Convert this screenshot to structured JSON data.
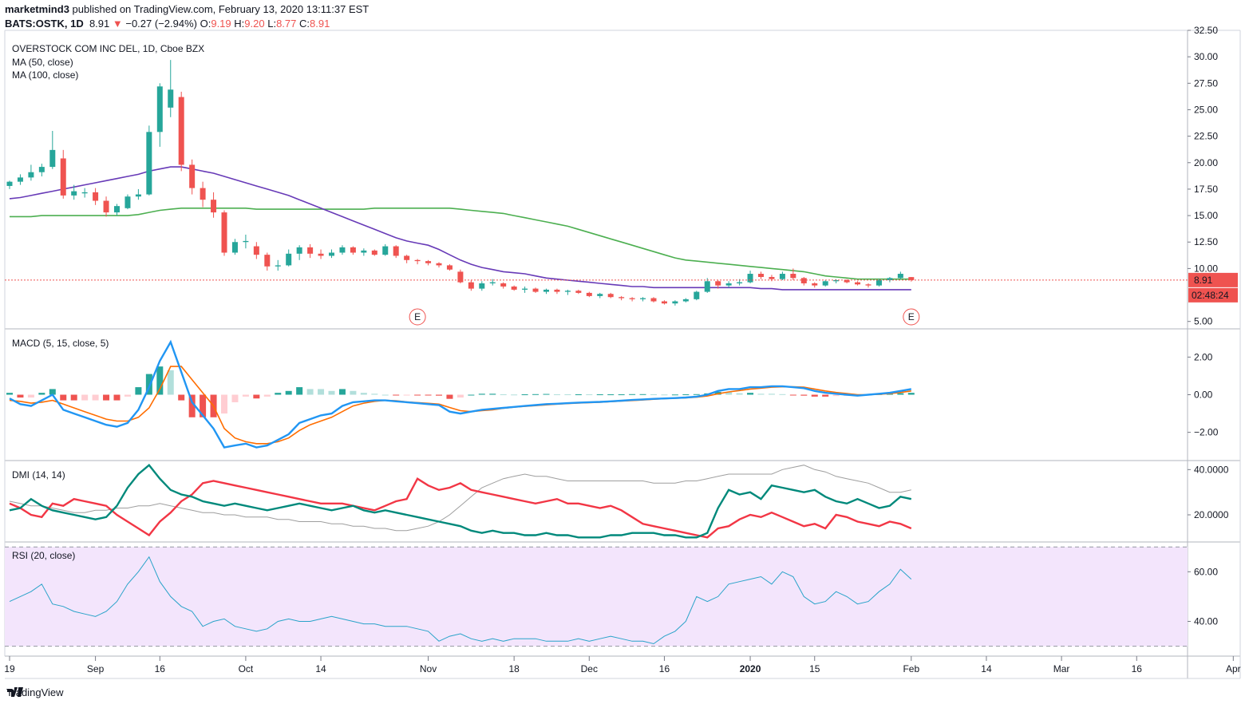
{
  "header": {
    "author": "marketmind3",
    "published_text": "published on TradingView.com, February 13, 2020 13:11:37 EST",
    "symbol": "BATS:OSTK, 1D",
    "last": "8.91",
    "change": "−0.27 (−2.94%)",
    "o_label": "O:",
    "o": "9.19",
    "h_label": "H:",
    "h": "9.20",
    "l_label": "L:",
    "l": "8.77",
    "c_label": "C:",
    "c": "8.91"
  },
  "footer": {
    "brand": "TradingView"
  },
  "colors": {
    "up": "#26a69a",
    "down": "#ef5350",
    "ma50": "#673ab7",
    "ma100": "#4caf50",
    "macd": "#2196f3",
    "signal": "#ff6d00",
    "diplus": "#00897b",
    "diminus": "#f23645",
    "adx": "#9e9e9e",
    "rsi": "#29a3c9",
    "rsi_band": "#f3e5fc"
  },
  "chart_data": [
    {
      "type": "candlestick",
      "title": "OVERSTOCK COM INC DEL, 1D, Cboe BZX",
      "legend": [
        "MA (50, close)",
        "MA (100, close)"
      ],
      "ylim": [
        4.3,
        32.5
      ],
      "y_ticks": [
        "32.50",
        "30.00",
        "27.50",
        "25.00",
        "22.50",
        "20.00",
        "17.50",
        "15.00",
        "12.50",
        "10.00",
        "5.00"
      ],
      "last_price_label": "8.91",
      "countdown_label": "02:48:24",
      "earnings_markers": [
        "E",
        "E"
      ],
      "earnings_x": [
        38,
        84
      ],
      "x_ticks": [
        {
          "label": "19",
          "x": 0
        },
        {
          "label": "Sep",
          "x": 8
        },
        {
          "label": "16",
          "x": 14
        },
        {
          "label": "Oct",
          "x": 22
        },
        {
          "label": "14",
          "x": 29
        },
        {
          "label": "Nov",
          "x": 39
        },
        {
          "label": "18",
          "x": 47
        },
        {
          "label": "Dec",
          "x": 54
        },
        {
          "label": "16",
          "x": 61
        },
        {
          "label": "2020",
          "x": 69
        },
        {
          "label": "15",
          "x": 75
        },
        {
          "label": "Feb",
          "x": 84
        },
        {
          "label": "14",
          "x": 91
        },
        {
          "label": "Mar",
          "x": 98
        },
        {
          "label": "16",
          "x": 105
        },
        {
          "label": "Apr",
          "x": 114
        }
      ],
      "candles": [
        [
          17.8,
          18.3,
          17.5,
          18.2
        ],
        [
          18.2,
          18.9,
          17.9,
          18.6
        ],
        [
          18.6,
          19.8,
          18.3,
          19.1
        ],
        [
          19.1,
          19.9,
          18.7,
          19.6
        ],
        [
          19.6,
          23.0,
          19.4,
          21.2
        ],
        [
          20.4,
          21.2,
          16.6,
          16.9
        ],
        [
          16.9,
          17.9,
          16.5,
          17.3
        ],
        [
          17.1,
          17.6,
          16.7,
          17.2
        ],
        [
          17.2,
          17.6,
          16.0,
          16.4
        ],
        [
          16.4,
          16.8,
          14.9,
          15.3
        ],
        [
          15.3,
          16.1,
          15.0,
          15.9
        ],
        [
          15.7,
          17.0,
          15.6,
          16.8
        ],
        [
          16.8,
          17.5,
          16.5,
          17.0
        ],
        [
          17.0,
          23.5,
          16.9,
          22.9
        ],
        [
          22.9,
          27.5,
          21.5,
          27.2
        ],
        [
          25.2,
          29.7,
          24.3,
          26.9
        ],
        [
          26.2,
          26.7,
          19.2,
          19.8
        ],
        [
          19.8,
          20.3,
          17.0,
          17.6
        ],
        [
          17.6,
          18.2,
          15.8,
          16.5
        ],
        [
          16.5,
          17.2,
          14.8,
          15.3
        ],
        [
          15.3,
          15.5,
          11.2,
          11.5
        ],
        [
          11.5,
          12.8,
          11.3,
          12.5
        ],
        [
          12.5,
          13.2,
          11.9,
          12.6
        ],
        [
          12.1,
          12.5,
          10.9,
          11.3
        ],
        [
          11.3,
          11.5,
          9.8,
          10.2
        ],
        [
          10.2,
          10.8,
          9.8,
          10.3
        ],
        [
          10.3,
          11.8,
          10.2,
          11.4
        ],
        [
          11.4,
          12.2,
          10.8,
          12.0
        ],
        [
          12.0,
          12.3,
          11.0,
          11.4
        ],
        [
          11.4,
          11.8,
          10.9,
          11.2
        ],
        [
          11.2,
          11.8,
          11.0,
          11.5
        ],
        [
          11.5,
          12.2,
          11.3,
          12.0
        ],
        [
          12.0,
          12.1,
          11.3,
          11.5
        ],
        [
          11.5,
          11.9,
          11.2,
          11.7
        ],
        [
          11.7,
          11.8,
          11.2,
          11.3
        ],
        [
          11.3,
          12.3,
          11.2,
          12.1
        ],
        [
          12.1,
          12.2,
          11.0,
          11.2
        ],
        [
          11.2,
          11.3,
          10.5,
          10.8
        ],
        [
          10.8,
          10.9,
          10.4,
          10.7
        ],
        [
          10.7,
          10.8,
          10.3,
          10.5
        ],
        [
          10.5,
          10.6,
          10.1,
          10.3
        ],
        [
          10.3,
          10.4,
          9.8,
          9.9
        ],
        [
          9.7,
          9.9,
          8.6,
          8.7
        ],
        [
          8.7,
          8.9,
          7.9,
          8.1
        ],
        [
          8.1,
          8.8,
          7.9,
          8.6
        ],
        [
          8.6,
          9.0,
          8.4,
          8.7
        ],
        [
          8.6,
          8.7,
          8.1,
          8.3
        ],
        [
          8.3,
          8.4,
          7.9,
          8.0
        ],
        [
          8.0,
          8.3,
          7.7,
          8.1
        ],
        [
          8.1,
          8.2,
          7.7,
          7.8
        ],
        [
          7.8,
          8.1,
          7.6,
          8.0
        ],
        [
          8.0,
          8.1,
          7.6,
          7.8
        ],
        [
          7.8,
          8.0,
          7.5,
          7.9
        ],
        [
          7.9,
          8.0,
          7.6,
          7.7
        ],
        [
          7.7,
          7.8,
          7.3,
          7.4
        ],
        [
          7.4,
          7.7,
          7.2,
          7.6
        ],
        [
          7.6,
          7.7,
          7.2,
          7.3
        ],
        [
          7.3,
          7.4,
          7.0,
          7.2
        ],
        [
          7.2,
          7.3,
          6.9,
          7.1
        ],
        [
          7.1,
          7.3,
          6.9,
          7.2
        ],
        [
          7.2,
          7.3,
          6.8,
          6.9
        ],
        [
          6.9,
          7.0,
          6.6,
          6.7
        ],
        [
          6.7,
          7.0,
          6.5,
          6.9
        ],
        [
          6.9,
          7.2,
          6.8,
          7.1
        ],
        [
          7.1,
          7.9,
          7.0,
          7.8
        ],
        [
          7.8,
          9.1,
          7.7,
          8.8
        ],
        [
          8.8,
          8.9,
          8.1,
          8.4
        ],
        [
          8.4,
          8.8,
          8.2,
          8.6
        ],
        [
          8.6,
          9.0,
          8.4,
          8.7
        ],
        [
          8.7,
          9.8,
          8.6,
          9.5
        ],
        [
          9.5,
          9.7,
          9.0,
          9.2
        ],
        [
          9.2,
          9.4,
          8.8,
          9.0
        ],
        [
          9.0,
          9.7,
          8.9,
          9.5
        ],
        [
          9.5,
          10.0,
          8.9,
          9.1
        ],
        [
          9.1,
          9.2,
          8.4,
          8.6
        ],
        [
          8.6,
          8.7,
          8.2,
          8.4
        ],
        [
          8.4,
          8.9,
          8.3,
          8.8
        ],
        [
          8.8,
          9.0,
          8.6,
          8.9
        ],
        [
          8.9,
          9.0,
          8.6,
          8.7
        ],
        [
          8.7,
          8.8,
          8.4,
          8.5
        ],
        [
          8.5,
          8.6,
          8.2,
          8.4
        ],
        [
          8.4,
          9.0,
          8.3,
          8.9
        ],
        [
          8.9,
          9.2,
          8.7,
          9.1
        ],
        [
          9.1,
          9.7,
          9.0,
          9.5
        ],
        [
          9.19,
          9.2,
          8.77,
          8.91
        ]
      ],
      "ma50": [
        16.6,
        16.7,
        16.9,
        17.1,
        17.3,
        17.5,
        17.7,
        17.9,
        18.1,
        18.3,
        18.5,
        18.7,
        18.9,
        19.2,
        19.4,
        19.6,
        19.6,
        19.4,
        19.2,
        19.0,
        18.7,
        18.4,
        18.1,
        17.8,
        17.5,
        17.2,
        16.9,
        16.5,
        16.1,
        15.7,
        15.3,
        14.9,
        14.5,
        14.1,
        13.7,
        13.3,
        12.9,
        12.6,
        12.4,
        12.2,
        11.8,
        11.3,
        10.8,
        10.4,
        10.1,
        9.9,
        9.7,
        9.6,
        9.5,
        9.3,
        9.1,
        9.0,
        8.9,
        8.8,
        8.7,
        8.6,
        8.5,
        8.4,
        8.3,
        8.3,
        8.2,
        8.2,
        8.2,
        8.2,
        8.2,
        8.2,
        8.2,
        8.2,
        8.2,
        8.2,
        8.1,
        8.1,
        8.0,
        8.0,
        8.0,
        8.0,
        8.0,
        8.0,
        8.0,
        8.0,
        8.0,
        8.0,
        8.0,
        8.0,
        8.0
      ],
      "ma100": [
        14.9,
        14.9,
        14.9,
        15.0,
        15.0,
        15.0,
        15.0,
        15.0,
        15.0,
        15.0,
        15.0,
        15.0,
        15.1,
        15.3,
        15.5,
        15.6,
        15.7,
        15.7,
        15.7,
        15.7,
        15.7,
        15.7,
        15.7,
        15.6,
        15.6,
        15.6,
        15.6,
        15.6,
        15.6,
        15.6,
        15.6,
        15.6,
        15.6,
        15.6,
        15.7,
        15.7,
        15.7,
        15.7,
        15.7,
        15.7,
        15.7,
        15.7,
        15.6,
        15.5,
        15.4,
        15.3,
        15.2,
        15.0,
        14.8,
        14.6,
        14.4,
        14.2,
        14.0,
        13.7,
        13.4,
        13.1,
        12.8,
        12.5,
        12.2,
        11.9,
        11.6,
        11.3,
        11.0,
        10.8,
        10.7,
        10.6,
        10.5,
        10.4,
        10.3,
        10.2,
        10.1,
        10.0,
        9.9,
        9.8,
        9.7,
        9.5,
        9.3,
        9.2,
        9.1,
        9.0,
        9.0,
        9.0,
        9.0,
        9.0,
        9.0
      ]
    },
    {
      "type": "line",
      "title": "MACD (5, 15, close, 5)",
      "ylim": [
        -3.5,
        3.5
      ],
      "y_ticks": [
        "2.00",
        "0.00",
        "−2.00"
      ],
      "macd": [
        -0.2,
        -0.5,
        -0.6,
        -0.3,
        0.0,
        -0.8,
        -1.0,
        -1.2,
        -1.4,
        -1.6,
        -1.7,
        -1.5,
        -0.8,
        0.4,
        1.8,
        2.8,
        1.2,
        -0.4,
        -1.1,
        -1.8,
        -2.8,
        -2.7,
        -2.6,
        -2.8,
        -2.7,
        -2.4,
        -2.1,
        -1.5,
        -1.3,
        -1.1,
        -1.0,
        -0.6,
        -0.4,
        -0.35,
        -0.3,
        -0.3,
        -0.35,
        -0.4,
        -0.45,
        -0.5,
        -0.55,
        -0.9,
        -1.0,
        -0.9,
        -0.8,
        -0.75,
        -0.7,
        -0.65,
        -0.6,
        -0.55,
        -0.5,
        -0.48,
        -0.45,
        -0.42,
        -0.4,
        -0.38,
        -0.35,
        -0.32,
        -0.28,
        -0.25,
        -0.22,
        -0.2,
        -0.18,
        -0.15,
        -0.1,
        0.0,
        0.2,
        0.3,
        0.3,
        0.4,
        0.4,
        0.45,
        0.45,
        0.4,
        0.35,
        0.2,
        0.1,
        0.05,
        0.0,
        -0.05,
        0.0,
        0.05,
        0.1,
        0.2,
        0.3
      ],
      "signal": [
        -0.3,
        -0.35,
        -0.45,
        -0.4,
        -0.3,
        -0.5,
        -0.7,
        -0.9,
        -1.1,
        -1.3,
        -1.4,
        -1.4,
        -1.2,
        -0.7,
        0.3,
        1.5,
        1.5,
        0.8,
        0.1,
        -0.6,
        -1.8,
        -2.3,
        -2.5,
        -2.6,
        -2.6,
        -2.5,
        -2.3,
        -1.9,
        -1.6,
        -1.4,
        -1.2,
        -0.9,
        -0.6,
        -0.45,
        -0.35,
        -0.3,
        -0.32,
        -0.38,
        -0.42,
        -0.46,
        -0.5,
        -0.68,
        -0.85,
        -0.9,
        -0.85,
        -0.8,
        -0.72,
        -0.66,
        -0.62,
        -0.58,
        -0.54,
        -0.5,
        -0.47,
        -0.44,
        -0.42,
        -0.4,
        -0.37,
        -0.34,
        -0.31,
        -0.28,
        -0.24,
        -0.21,
        -0.19,
        -0.17,
        -0.13,
        -0.07,
        0.05,
        0.15,
        0.22,
        0.3,
        0.35,
        0.4,
        0.42,
        0.42,
        0.4,
        0.3,
        0.2,
        0.12,
        0.06,
        0.0,
        0.0,
        0.02,
        0.06,
        0.12,
        0.2
      ]
    },
    {
      "type": "line",
      "title": "DMI (14, 14)",
      "ylim": [
        8,
        44
      ],
      "y_ticks": [
        "40.0000",
        "20.0000"
      ],
      "di_plus": [
        22,
        23,
        27,
        24,
        22,
        21,
        20,
        19,
        18,
        19,
        24,
        32,
        38,
        42,
        36,
        31,
        29,
        28,
        26,
        25,
        24,
        25,
        24,
        23,
        22,
        23,
        24,
        25,
        24,
        23,
        22,
        23,
        24,
        22,
        21,
        22,
        21,
        20,
        19,
        18,
        17,
        16,
        15,
        13,
        12,
        13,
        12,
        12,
        11,
        11,
        12,
        11,
        11,
        10,
        10,
        10,
        11,
        11,
        12,
        12,
        12,
        11,
        11,
        10,
        10,
        12,
        23,
        31,
        29,
        30,
        27,
        33,
        32,
        31,
        30,
        31,
        28,
        26,
        25,
        27,
        25,
        23,
        24,
        28,
        27
      ],
      "di_minus": [
        25,
        23,
        20,
        19,
        25,
        24,
        27,
        26,
        25,
        24,
        20,
        17,
        14,
        11,
        17,
        21,
        26,
        29,
        34,
        35,
        34,
        33,
        32,
        31,
        30,
        29,
        28,
        27,
        26,
        25,
        25,
        25,
        24,
        23,
        22,
        24,
        26,
        27,
        36,
        33,
        31,
        32,
        34,
        31,
        30,
        29,
        28,
        27,
        26,
        25,
        26,
        27,
        25,
        25,
        24,
        23,
        24,
        22,
        19,
        16,
        15,
        14,
        13,
        12,
        11,
        10,
        14,
        15,
        18,
        20,
        19,
        21,
        19,
        17,
        15,
        16,
        14,
        20,
        19,
        17,
        16,
        15,
        17,
        16,
        14
      ],
      "adx": [
        26,
        25,
        24,
        24,
        23,
        22,
        21,
        21,
        22,
        22,
        23,
        23,
        24,
        24,
        25,
        24,
        23,
        22,
        21,
        21,
        20,
        20,
        19,
        19,
        19,
        18,
        18,
        17,
        17,
        17,
        16,
        16,
        15,
        15,
        14,
        14,
        13,
        13,
        14,
        15,
        17,
        20,
        24,
        28,
        32,
        34,
        36,
        37,
        38,
        37,
        37,
        36,
        35,
        35,
        35,
        35,
        35,
        35,
        35,
        35,
        34,
        34,
        34,
        35,
        35,
        36,
        37,
        38,
        38,
        38,
        38,
        38,
        40,
        41,
        42,
        40,
        39,
        37,
        36,
        35,
        34,
        32,
        30,
        30,
        31
      ]
    },
    {
      "type": "line",
      "title": "RSI (20, close)",
      "ylim": [
        26,
        72
      ],
      "y_ticks": [
        "60.00",
        "40.00"
      ],
      "band": [
        30,
        70
      ],
      "rsi": [
        48,
        50,
        52,
        55,
        47,
        46,
        44,
        43,
        42,
        44,
        48,
        55,
        60,
        66,
        56,
        50,
        46,
        44,
        38,
        40,
        41,
        38,
        37,
        36,
        37,
        40,
        41,
        40,
        40,
        41,
        42,
        41,
        40,
        39,
        39,
        38,
        38,
        38,
        37,
        36,
        32,
        34,
        35,
        33,
        32,
        33,
        32,
        33,
        33,
        33,
        32,
        32,
        32,
        33,
        32,
        33,
        34,
        33,
        32,
        32,
        31,
        34,
        36,
        40,
        50,
        48,
        50,
        55,
        56,
        57,
        58,
        55,
        60,
        58,
        50,
        47,
        48,
        52,
        50,
        47,
        48,
        52,
        55,
        61,
        57
      ]
    }
  ]
}
